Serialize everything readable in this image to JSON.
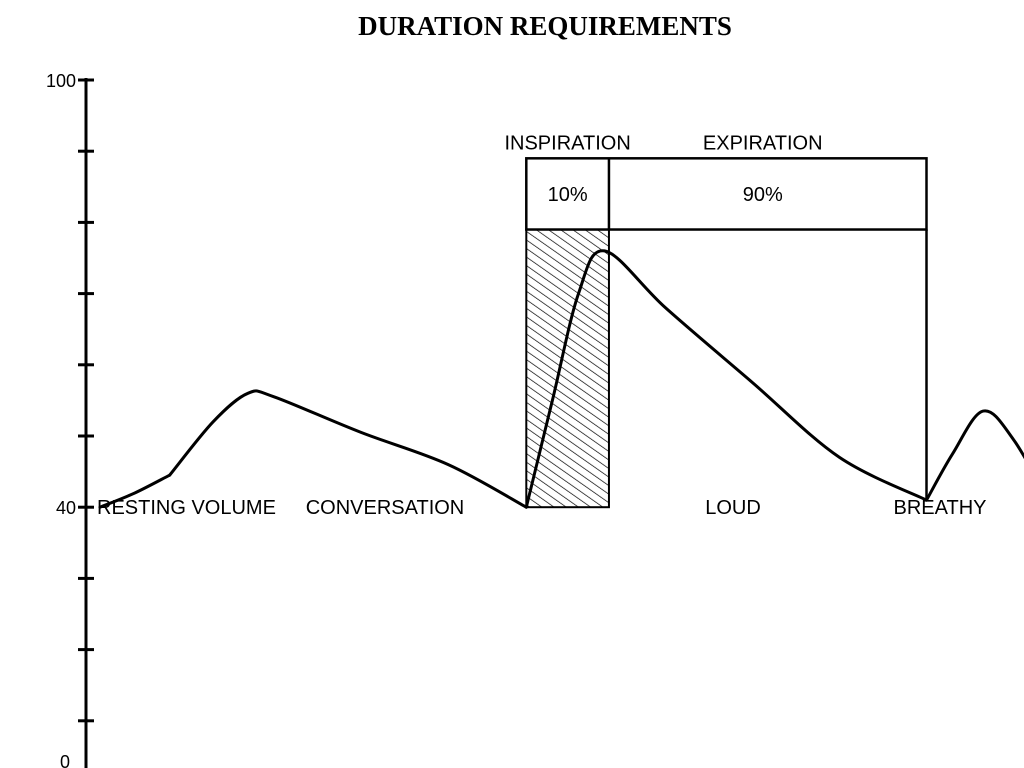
{
  "chart_data": {
    "type": "line",
    "title": "DURATION REQUIREMENTS",
    "ylim": [
      0,
      100
    ],
    "y_tick_labels": [
      "100",
      "40",
      "0"
    ],
    "y_ticks": [
      0,
      10,
      20,
      30,
      40,
      50,
      60,
      70,
      80,
      90,
      100
    ],
    "grid": false,
    "legend": "none",
    "series": [
      {
        "label": "RESTING VOLUME",
        "points": [
          [
            0.0,
            40
          ],
          [
            0.4,
            42
          ],
          [
            0.8,
            44.5
          ]
        ]
      },
      {
        "label": "CONVERSATION",
        "points": [
          [
            0.8,
            44.5
          ],
          [
            1.3,
            52
          ],
          [
            1.7,
            56
          ],
          [
            2.0,
            55.5
          ],
          [
            3.0,
            50.5
          ],
          [
            4.0,
            46
          ],
          [
            4.9,
            40
          ]
        ]
      },
      {
        "label": "LOUD",
        "points": [
          [
            4.9,
            40
          ],
          [
            5.2,
            55
          ],
          [
            5.5,
            70
          ],
          [
            5.8,
            76
          ],
          [
            6.5,
            68
          ],
          [
            7.5,
            57.5
          ],
          [
            8.5,
            47
          ],
          [
            9.5,
            41
          ]
        ]
      },
      {
        "label": "BREATHY",
        "points": [
          [
            9.5,
            41
          ],
          [
            9.8,
            47.5
          ],
          [
            10.15,
            53.5
          ],
          [
            10.5,
            49.5
          ],
          [
            10.95,
            40
          ]
        ]
      }
    ],
    "inspiration": {
      "label": "INSPIRATION",
      "percent_label": "10%",
      "x_range": [
        4.9,
        5.85
      ],
      "y_range": [
        40,
        79
      ],
      "hatched": true
    },
    "expiration": {
      "label": "EXPIRATION",
      "percent_label": "90%",
      "x_range": [
        5.85,
        9.5
      ],
      "y_range": [
        41,
        79
      ]
    },
    "header_box": {
      "y_range": [
        79,
        89
      ]
    },
    "label_baseline": 40
  },
  "colors": {
    "ink": "#000000",
    "background": "#ffffff"
  }
}
